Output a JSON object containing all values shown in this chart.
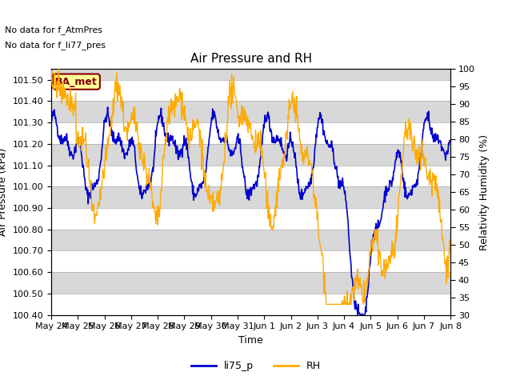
{
  "title": "Air Pressure and RH",
  "xlabel": "Time",
  "ylabel_left": "Air Pressure (kPa)",
  "ylabel_right": "Relativity Humidity (%)",
  "ylim_left": [
    100.4,
    101.55
  ],
  "ylim_right": [
    30,
    100
  ],
  "yticks_left": [
    100.4,
    100.5,
    100.6,
    100.7,
    100.8,
    100.9,
    101.0,
    101.1,
    101.2,
    101.3,
    101.4,
    101.5
  ],
  "yticks_right": [
    30,
    35,
    40,
    45,
    50,
    55,
    60,
    65,
    70,
    75,
    80,
    85,
    90,
    95,
    100
  ],
  "xtick_labels": [
    "May 24",
    "May 25",
    "May 26",
    "May 27",
    "May 28",
    "May 29",
    "May 30",
    "May 31",
    "Jun 1",
    "Jun 2",
    "Jun 3",
    "Jun 4",
    "Jun 5",
    "Jun 6",
    "Jun 7",
    "Jun 8"
  ],
  "color_blue": "#0000cc",
  "color_orange": "#ffaa00",
  "legend_labels": [
    "li75_p",
    "RH"
  ],
  "no_data_text_1": "No data for f_AtmPres",
  "no_data_text_2": "No data for f_li77_pres",
  "ba_met_label": "BA_met",
  "band_light": "#ffffff",
  "band_dark": "#d8d8d8",
  "title_fontsize": 11,
  "axis_fontsize": 9,
  "tick_fontsize": 8,
  "legend_fontsize": 9,
  "nodata_fontsize": 8,
  "n_points": 800,
  "seed": 42
}
